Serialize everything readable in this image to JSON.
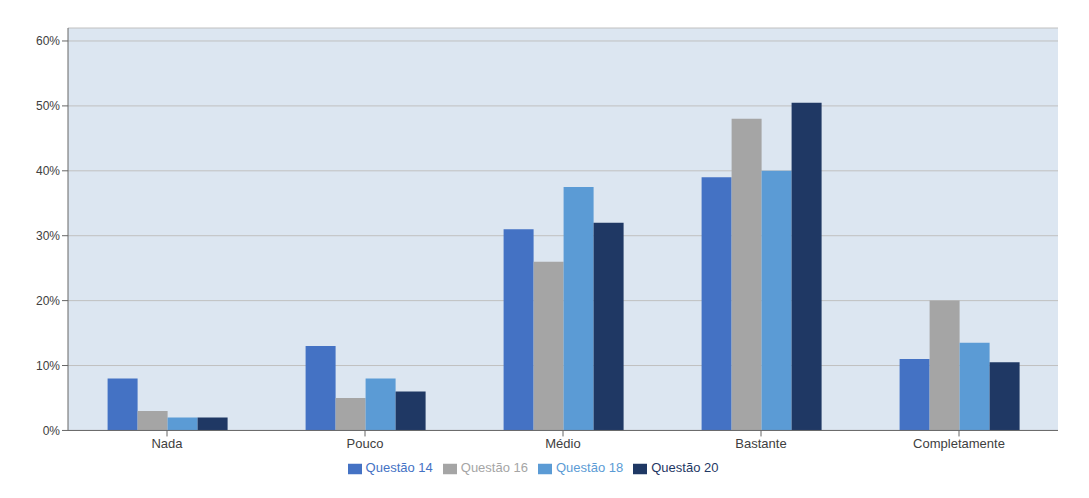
{
  "chart_data": {
    "type": "bar",
    "categories": [
      "Nada",
      "Pouco",
      "Médio",
      "Bastante",
      "Completamente"
    ],
    "series": [
      {
        "name": "Questão 14",
        "color": "#4472C4",
        "values": [
          0.08,
          0.13,
          0.31,
          0.39,
          0.11
        ]
      },
      {
        "name": "Questão 16",
        "color": "#A5A5A5",
        "values": [
          0.03,
          0.05,
          0.26,
          0.48,
          0.2
        ]
      },
      {
        "name": "Questão 18",
        "color": "#5B9BD5",
        "values": [
          0.02,
          0.08,
          0.375,
          0.4,
          0.135
        ]
      },
      {
        "name": "Questão 20",
        "color": "#1F3864",
        "values": [
          0.02,
          0.06,
          0.32,
          0.505,
          0.105
        ]
      }
    ],
    "ylim": [
      0,
      0.62
    ],
    "yticks": [
      {
        "value": 0.0,
        "label": "0%"
      },
      {
        "value": 0.1,
        "label": "10%"
      },
      {
        "value": 0.2,
        "label": "20%"
      },
      {
        "value": 0.3,
        "label": "30%"
      },
      {
        "value": 0.4,
        "label": "40%"
      },
      {
        "value": 0.5,
        "label": "50%"
      },
      {
        "value": 0.6,
        "label": "60%"
      }
    ],
    "grid": true,
    "legend": "bottom"
  }
}
